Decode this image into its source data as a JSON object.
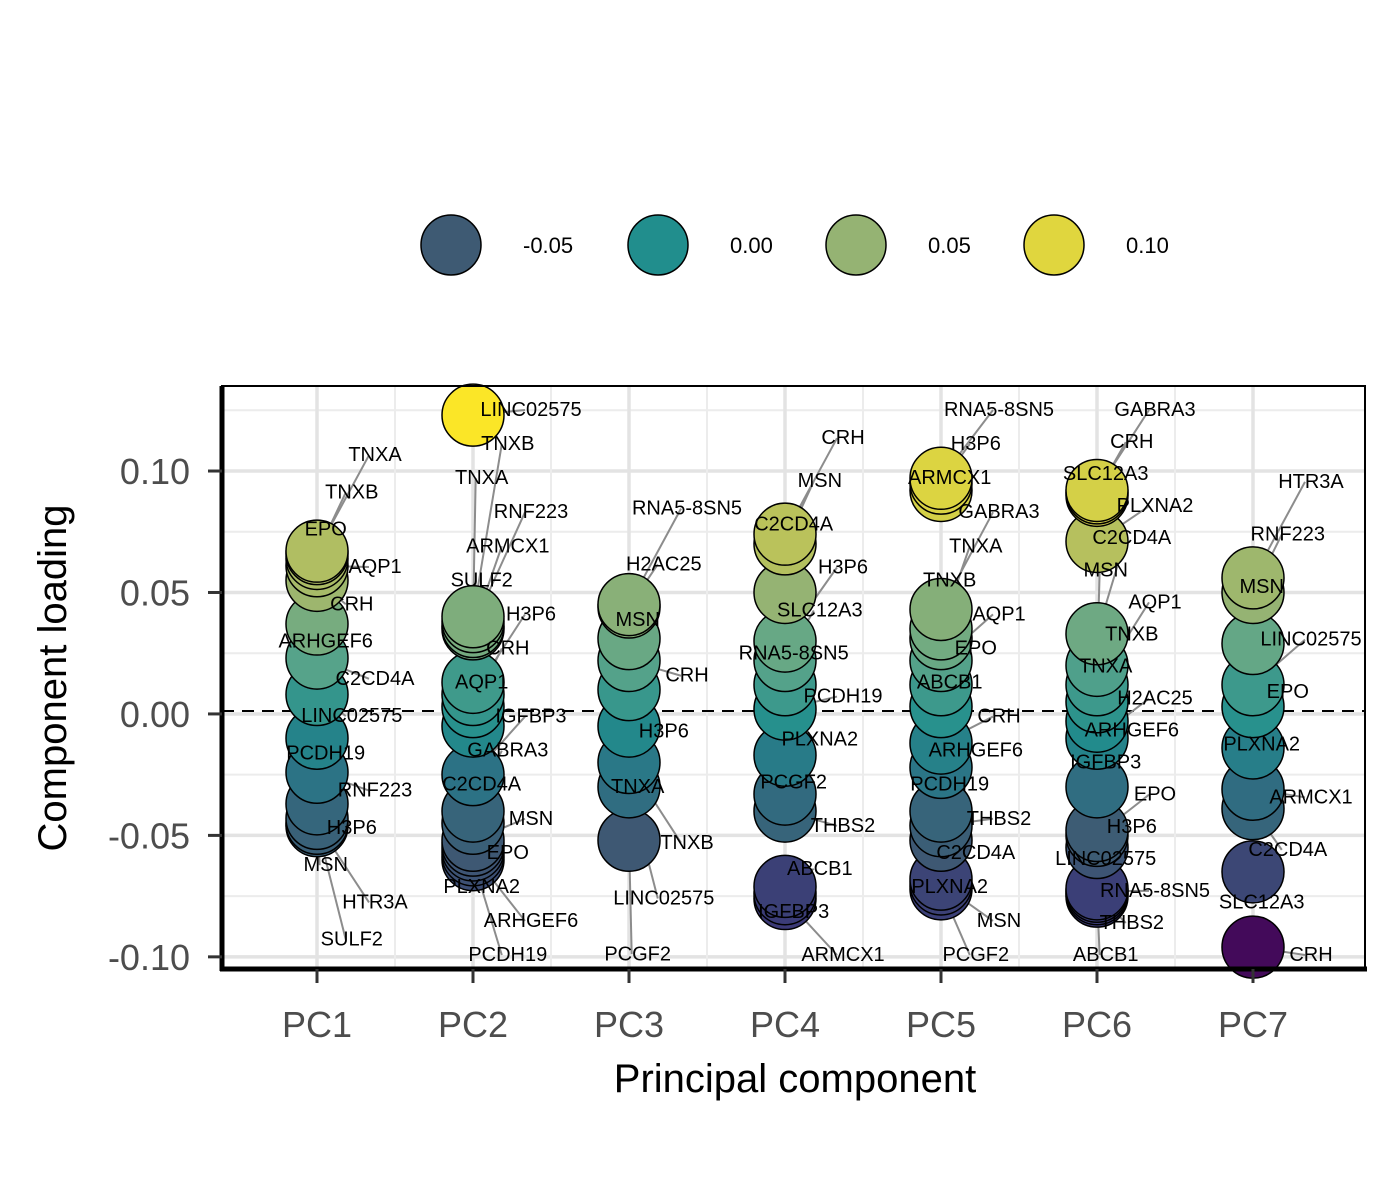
{
  "chart_data": {
    "type": "scatter",
    "xlabel": "Principal component",
    "ylabel": "Component loading",
    "categories": [
      "PC1",
      "PC2",
      "PC3",
      "PC4",
      "PC5",
      "PC6",
      "PC7"
    ],
    "ylim": [
      -0.105,
      0.135
    ],
    "yticks": [
      0.1,
      0.05,
      0.0,
      -0.05,
      -0.1
    ],
    "ytick_labels": [
      "0.10",
      "0.05",
      "0.00",
      "-0.05",
      "-0.10"
    ],
    "reference_line": 0,
    "grid": true,
    "legend": {
      "placement": "top",
      "values": [
        -0.05,
        0.0,
        0.05,
        0.1
      ],
      "labels": [
        "-0.05",
        "0.00",
        "0.05",
        "0.10"
      ]
    },
    "color_scale": {
      "stops": [
        {
          "v": -0.1,
          "c": "#440154"
        },
        {
          "v": -0.075,
          "c": "#3b3b77"
        },
        {
          "v": -0.05,
          "c": "#3e5a73"
        },
        {
          "v": -0.025,
          "c": "#2c7285"
        },
        {
          "v": 0.0,
          "c": "#218e8d"
        },
        {
          "v": 0.025,
          "c": "#5ba58a"
        },
        {
          "v": 0.05,
          "c": "#95b373"
        },
        {
          "v": 0.075,
          "c": "#bcc35a"
        },
        {
          "v": 0.1,
          "c": "#e0d63e"
        },
        {
          "v": 0.125,
          "c": "#fde725"
        }
      ]
    },
    "points": [
      {
        "pc": "PC1",
        "gene": "TNXA",
        "y": 0.067
      },
      {
        "pc": "PC1",
        "gene": "TNXB",
        "y": 0.066
      },
      {
        "pc": "PC1",
        "gene": "EPO",
        "y": 0.064
      },
      {
        "pc": "PC1",
        "gene": "AQP1",
        "y": 0.061
      },
      {
        "pc": "PC1",
        "gene": "CRH",
        "y": 0.055
      },
      {
        "pc": "PC1",
        "gene": "ARHGEF6",
        "y": 0.037
      },
      {
        "pc": "PC1",
        "gene": "C2CD4A",
        "y": 0.023
      },
      {
        "pc": "PC1",
        "gene": "LINC02575",
        "y": 0.008
      },
      {
        "pc": "PC1",
        "gene": "PCDH19",
        "y": -0.01
      },
      {
        "pc": "PC1",
        "gene": "RNF223",
        "y": -0.024
      },
      {
        "pc": "PC1",
        "gene": "H3P6",
        "y": -0.037
      },
      {
        "pc": "PC1",
        "gene": "MSN",
        "y": -0.043
      },
      {
        "pc": "PC1",
        "gene": "HTR3A",
        "y": -0.045
      },
      {
        "pc": "PC1",
        "gene": "SULF2",
        "y": -0.046
      },
      {
        "pc": "PC2",
        "gene": "LINC02575",
        "y": 0.123
      },
      {
        "pc": "PC2",
        "gene": "TNXB",
        "y": 0.04
      },
      {
        "pc": "PC2",
        "gene": "TNXA",
        "y": 0.038
      },
      {
        "pc": "PC2",
        "gene": "RNF223",
        "y": 0.036
      },
      {
        "pc": "PC2",
        "gene": "ARMCX1",
        "y": 0.035
      },
      {
        "pc": "PC2",
        "gene": "SULF2",
        "y": 0.013
      },
      {
        "pc": "PC2",
        "gene": "H3P6",
        "y": 0.008
      },
      {
        "pc": "PC2",
        "gene": "CRH",
        "y": 0.003
      },
      {
        "pc": "PC2",
        "gene": "AQP1",
        "y": -0.005
      },
      {
        "pc": "PC2",
        "gene": "IGFBP3",
        "y": -0.025
      },
      {
        "pc": "PC2",
        "gene": "GABRA3",
        "y": -0.04
      },
      {
        "pc": "PC2",
        "gene": "C2CD4A",
        "y": -0.045
      },
      {
        "pc": "PC2",
        "gene": "MSN",
        "y": -0.052
      },
      {
        "pc": "PC2",
        "gene": "EPO",
        "y": -0.054
      },
      {
        "pc": "PC2",
        "gene": "PLXNA2",
        "y": -0.056
      },
      {
        "pc": "PC2",
        "gene": "ARHGEF6",
        "y": -0.058
      },
      {
        "pc": "PC2",
        "gene": "PCDH19",
        "y": -0.06
      },
      {
        "pc": "PC3",
        "gene": "RNA5-8SN5",
        "y": 0.045
      },
      {
        "pc": "PC3",
        "gene": "H2AC25",
        "y": 0.044
      },
      {
        "pc": "PC3",
        "gene": "MSN",
        "y": 0.031
      },
      {
        "pc": "PC3",
        "gene": "CRH",
        "y": 0.022
      },
      {
        "pc": "PC3",
        "gene": "H3P6",
        "y": 0.01
      },
      {
        "pc": "PC3",
        "gene": "TNXA",
        "y": -0.005
      },
      {
        "pc": "PC3",
        "gene": "TNXB",
        "y": -0.02
      },
      {
        "pc": "PC3",
        "gene": "LINC02575",
        "y": -0.03
      },
      {
        "pc": "PC3",
        "gene": "PCGF2",
        "y": -0.052
      },
      {
        "pc": "PC4",
        "gene": "CRH",
        "y": 0.074
      },
      {
        "pc": "PC4",
        "gene": "MSN",
        "y": 0.07
      },
      {
        "pc": "PC4",
        "gene": "C2CD4A",
        "y": 0.05
      },
      {
        "pc": "PC4",
        "gene": "H3P6",
        "y": 0.03
      },
      {
        "pc": "PC4",
        "gene": "SLC12A3",
        "y": 0.022
      },
      {
        "pc": "PC4",
        "gene": "RNA5-8SN5",
        "y": 0.012
      },
      {
        "pc": "PC4",
        "gene": "PCDH19",
        "y": 0.002
      },
      {
        "pc": "PC4",
        "gene": "PLXNA2",
        "y": -0.017
      },
      {
        "pc": "PC4",
        "gene": "PCGF2",
        "y": -0.033
      },
      {
        "pc": "PC4",
        "gene": "THBS2",
        "y": -0.04
      },
      {
        "pc": "PC4",
        "gene": "ABCB1",
        "y": -0.071
      },
      {
        "pc": "PC4",
        "gene": "IGFBP3",
        "y": -0.074
      },
      {
        "pc": "PC4",
        "gene": "ARMCX1",
        "y": -0.076
      },
      {
        "pc": "PC5",
        "gene": "RNA5-8SN5",
        "y": 0.097
      },
      {
        "pc": "PC5",
        "gene": "H3P6",
        "y": 0.095
      },
      {
        "pc": "PC5",
        "gene": "ARMCX1",
        "y": 0.092
      },
      {
        "pc": "PC5",
        "gene": "GABRA3",
        "y": 0.043
      },
      {
        "pc": "PC5",
        "gene": "TNXA",
        "y": 0.035
      },
      {
        "pc": "PC5",
        "gene": "TNXB",
        "y": 0.031
      },
      {
        "pc": "PC5",
        "gene": "AQP1",
        "y": 0.022
      },
      {
        "pc": "PC5",
        "gene": "EPO",
        "y": 0.012
      },
      {
        "pc": "PC5",
        "gene": "ABCB1",
        "y": 0.003
      },
      {
        "pc": "PC5",
        "gene": "CRH",
        "y": -0.012
      },
      {
        "pc": "PC5",
        "gene": "ARHGEF6",
        "y": -0.022
      },
      {
        "pc": "PC5",
        "gene": "PCDH19",
        "y": -0.04
      },
      {
        "pc": "PC5",
        "gene": "THBS2",
        "y": -0.046
      },
      {
        "pc": "PC5",
        "gene": "C2CD4A",
        "y": -0.052
      },
      {
        "pc": "PC5",
        "gene": "PLXNA2",
        "y": -0.068
      },
      {
        "pc": "PC5",
        "gene": "MSN",
        "y": -0.07
      },
      {
        "pc": "PC5",
        "gene": "PCGF2",
        "y": -0.072
      },
      {
        "pc": "PC6",
        "gene": "GABRA3",
        "y": 0.092
      },
      {
        "pc": "PC6",
        "gene": "CRH",
        "y": 0.091
      },
      {
        "pc": "PC6",
        "gene": "SLC12A3",
        "y": 0.09
      },
      {
        "pc": "PC6",
        "gene": "PLXNA2",
        "y": 0.071
      },
      {
        "pc": "PC6",
        "gene": "C2CD4A",
        "y": 0.033
      },
      {
        "pc": "PC6",
        "gene": "MSN",
        "y": 0.02
      },
      {
        "pc": "PC6",
        "gene": "AQP1",
        "y": 0.012
      },
      {
        "pc": "PC6",
        "gene": "TNXB",
        "y": 0.005
      },
      {
        "pc": "PC6",
        "gene": "TNXA",
        "y": -0.003
      },
      {
        "pc": "PC6",
        "gene": "H2AC25",
        "y": -0.01
      },
      {
        "pc": "PC6",
        "gene": "ARHGEF6",
        "y": -0.03
      },
      {
        "pc": "PC6",
        "gene": "IGFBP3",
        "y": -0.048
      },
      {
        "pc": "PC6",
        "gene": "EPO",
        "y": -0.05
      },
      {
        "pc": "PC6",
        "gene": "H3P6",
        "y": -0.055
      },
      {
        "pc": "PC6",
        "gene": "LINC02575",
        "y": -0.072
      },
      {
        "pc": "PC6",
        "gene": "RNA5-8SN5",
        "y": -0.073
      },
      {
        "pc": "PC6",
        "gene": "THBS2",
        "y": -0.074
      },
      {
        "pc": "PC6",
        "gene": "ABCB1",
        "y": -0.075
      },
      {
        "pc": "PC7",
        "gene": "HTR3A",
        "y": 0.056
      },
      {
        "pc": "PC7",
        "gene": "RNF223",
        "y": 0.05
      },
      {
        "pc": "PC7",
        "gene": "MSN",
        "y": 0.029
      },
      {
        "pc": "PC7",
        "gene": "LINC02575",
        "y": 0.012
      },
      {
        "pc": "PC7",
        "gene": "EPO",
        "y": 0.003
      },
      {
        "pc": "PC7",
        "gene": "PLXNA2",
        "y": -0.014
      },
      {
        "pc": "PC7",
        "gene": "ARMCX1",
        "y": -0.031
      },
      {
        "pc": "PC7",
        "gene": "C2CD4A",
        "y": -0.039
      },
      {
        "pc": "PC7",
        "gene": "SLC12A3",
        "y": -0.065
      },
      {
        "pc": "PC7",
        "gene": "CRH",
        "y": -0.096
      }
    ]
  }
}
